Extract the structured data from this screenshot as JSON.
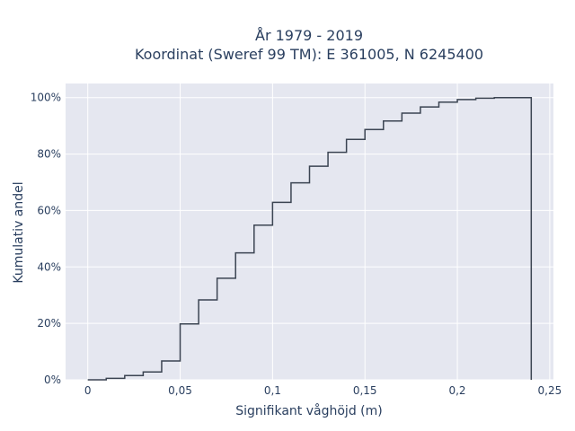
{
  "chart_data": {
    "type": "line",
    "subtype": "cumulative-step",
    "title_line1": "År 1979 - 2019",
    "title_line2": "Koordinat (Sweref 99 TM): E 361005, N 6245400",
    "xlabel": "Signifikant våghöjd (m)",
    "ylabel": "Kumulativ andel",
    "xlim": [
      -0.012,
      0.252
    ],
    "ylim": [
      0,
      1.05
    ],
    "x_ticks": [
      0,
      0.05,
      0.1,
      0.15,
      0.2,
      0.25
    ],
    "x_tick_labels": [
      "0",
      "0,05",
      "0,1",
      "0,15",
      "0,2",
      "0,25"
    ],
    "y_ticks": [
      0,
      0.2,
      0.4,
      0.6,
      0.8,
      1.0
    ],
    "y_tick_labels": [
      "0%",
      "20%",
      "40%",
      "60%",
      "80%",
      "100%"
    ],
    "grid": true,
    "line_color": "#3b4452",
    "plot_bg": "#e5e7f0",
    "x": [
      0,
      0.01,
      0.02,
      0.03,
      0.04,
      0.05,
      0.06,
      0.07,
      0.08,
      0.09,
      0.1,
      0.11,
      0.12,
      0.13,
      0.14,
      0.15,
      0.16,
      0.17,
      0.18,
      0.19,
      0.2,
      0.21,
      0.22,
      0.23,
      0.24
    ],
    "y": [
      0.0,
      0.005,
      0.015,
      0.028,
      0.067,
      0.198,
      0.283,
      0.36,
      0.45,
      0.548,
      0.629,
      0.698,
      0.757,
      0.806,
      0.852,
      0.887,
      0.917,
      0.945,
      0.967,
      0.984,
      0.993,
      0.998,
      1.0,
      1.0,
      0.0
    ]
  }
}
